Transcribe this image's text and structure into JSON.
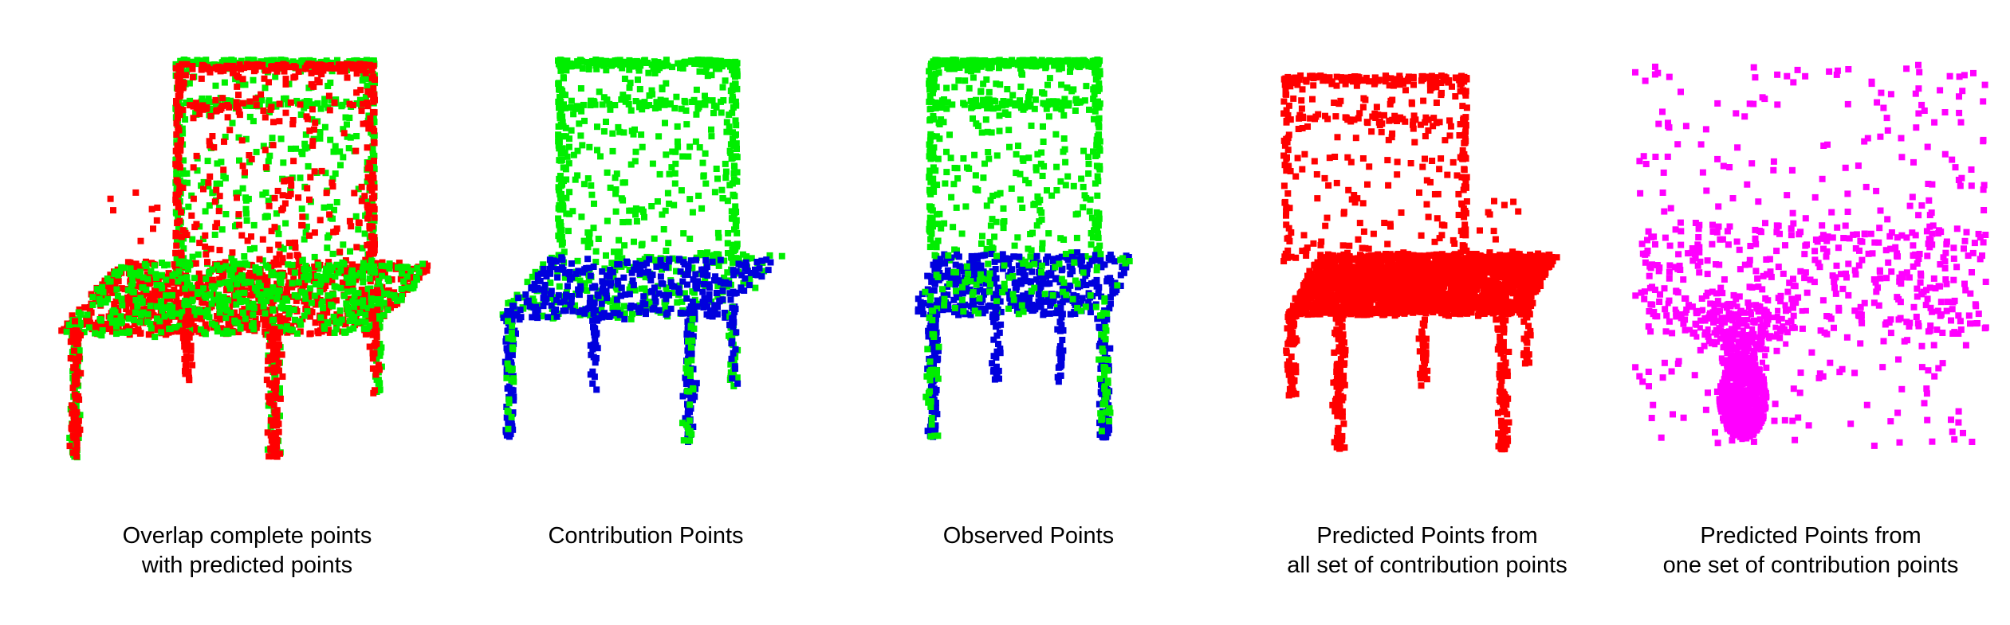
{
  "colors": {
    "complete": "#00ee00",
    "predicted": "#ff0000",
    "contribution": "#00ee00",
    "contribution_seat": "#0000dd",
    "observed": "#00ee00",
    "observed_seat": "#0000dd",
    "predicted_all": "#ff0000",
    "predicted_one": "#ff00ff"
  },
  "panels": [
    {
      "caption_line1": "Overlap complete points",
      "caption_line2": "with predicted points",
      "style": "overlap"
    },
    {
      "caption_line1": "Contribution Points",
      "caption_line2": "",
      "style": "contribution"
    },
    {
      "caption_line1": "Observed Points",
      "caption_line2": "",
      "style": "observed"
    },
    {
      "caption_line1": "Predicted Points from",
      "caption_line2": "all set of contribution points",
      "style": "predicted_all"
    },
    {
      "caption_line1": "Predicted Points from",
      "caption_line2": "one set of contribution points",
      "style": "predicted_one"
    }
  ]
}
